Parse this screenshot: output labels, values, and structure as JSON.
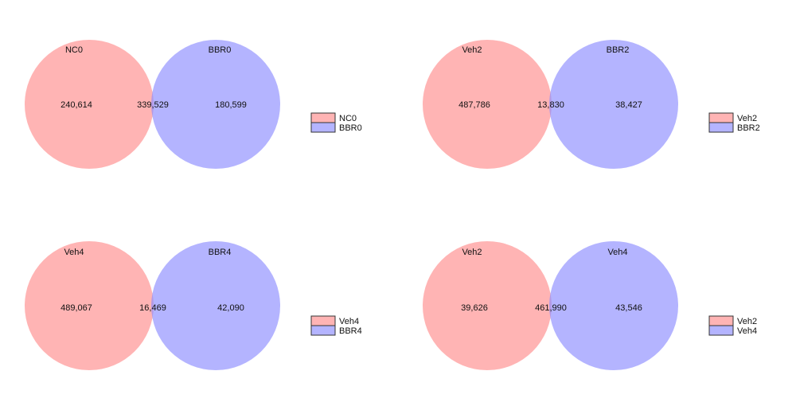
{
  "colors": {
    "set_a": "#ff8c8c",
    "set_b": "#8c8cff",
    "legend_border": "#333333"
  },
  "chart_data": [
    {
      "type": "venn",
      "sets": [
        "NC0",
        "BBR0"
      ],
      "only_a": "240,614",
      "intersection": "339,529",
      "only_b": "180,599",
      "legend": [
        "NC0",
        "BBR0"
      ]
    },
    {
      "type": "venn",
      "sets": [
        "Veh2",
        "BBR2"
      ],
      "only_a": "487,786",
      "intersection": "13,830",
      "only_b": "38,427",
      "legend": [
        "Veh2",
        "BBR2"
      ]
    },
    {
      "type": "venn",
      "sets": [
        "Veh4",
        "BBR4"
      ],
      "only_a": "489,067",
      "intersection": "16,469",
      "only_b": "42,090",
      "legend": [
        "Veh4",
        "BBR4"
      ]
    },
    {
      "type": "venn",
      "sets": [
        "Veh2",
        "Veh4"
      ],
      "only_a": "39,626",
      "intersection": "461,990",
      "only_b": "43,546",
      "legend": [
        "Veh2",
        "Veh4"
      ]
    }
  ]
}
